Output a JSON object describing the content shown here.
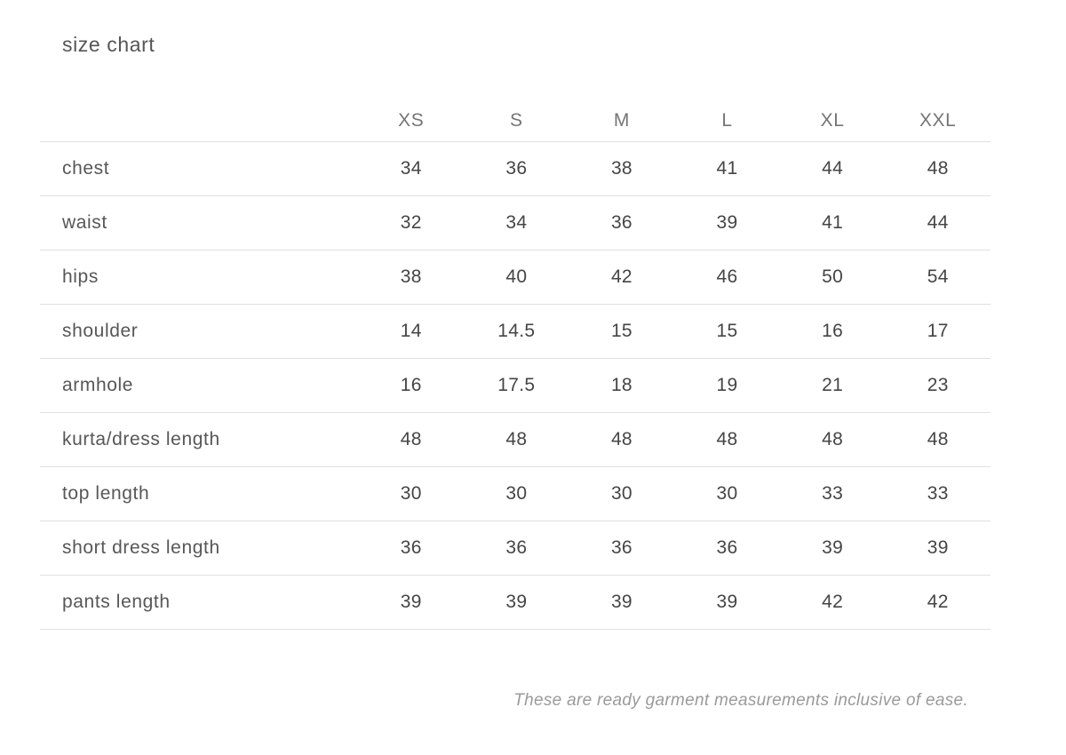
{
  "page": {
    "title": "size chart",
    "footer_note": "These are ready garment measurements inclusive of ease."
  },
  "size_chart": {
    "columns": [
      "XS",
      "S",
      "M",
      "L",
      "XL",
      "XXL"
    ],
    "rows": [
      {
        "label": "chest",
        "values": [
          "34",
          "36",
          "38",
          "41",
          "44",
          "48"
        ]
      },
      {
        "label": "waist",
        "values": [
          "32",
          "34",
          "36",
          "39",
          "41",
          "44"
        ]
      },
      {
        "label": "hips",
        "values": [
          "38",
          "40",
          "42",
          "46",
          "50",
          "54"
        ]
      },
      {
        "label": "shoulder",
        "values": [
          "14",
          "14.5",
          "15",
          "15",
          "16",
          "17"
        ]
      },
      {
        "label": "armhole",
        "values": [
          "16",
          "17.5",
          "18",
          "19",
          "21",
          "23"
        ]
      },
      {
        "label": "kurta/dress length",
        "values": [
          "48",
          "48",
          "48",
          "48",
          "48",
          "48"
        ]
      },
      {
        "label": "top length",
        "values": [
          "30",
          "30",
          "30",
          "30",
          "33",
          "33"
        ]
      },
      {
        "label": "short dress length",
        "values": [
          "36",
          "36",
          "36",
          "36",
          "39",
          "39"
        ]
      },
      {
        "label": "pants length",
        "values": [
          "39",
          "39",
          "39",
          "39",
          "42",
          "42"
        ]
      }
    ]
  },
  "colors": {
    "background": "#ffffff",
    "divider": "#e0e0e0",
    "title_text": "#555555",
    "header_text": "#757575",
    "value_text": "#454545",
    "footer_text": "#9a9a9a"
  }
}
